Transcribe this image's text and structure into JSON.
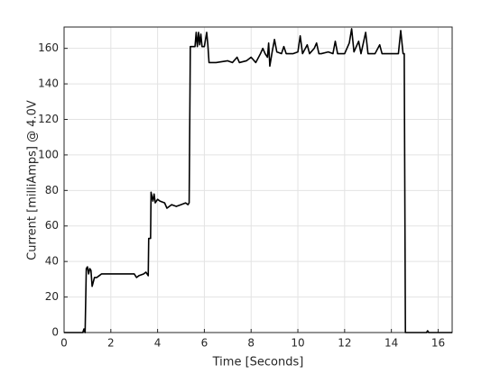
{
  "chart_data": {
    "type": "line",
    "xlabel": "Time [Seconds]",
    "ylabel": "Current [milliAmps] @ 4.0V",
    "x": [
      0,
      0.8,
      0.85,
      0.9,
      0.95,
      1.0,
      1.05,
      1.1,
      1.15,
      1.2,
      1.3,
      1.4,
      1.5,
      1.6,
      2.0,
      2.5,
      3.0,
      3.1,
      3.2,
      3.4,
      3.5,
      3.6,
      3.62,
      3.7,
      3.72,
      3.8,
      3.85,
      3.9,
      4.0,
      4.1,
      4.3,
      4.4,
      4.6,
      4.8,
      5.0,
      5.2,
      5.3,
      5.35,
      5.4,
      5.5,
      5.6,
      5.65,
      5.7,
      5.75,
      5.8,
      5.85,
      5.9,
      6.0,
      6.1,
      6.15,
      6.2,
      6.5,
      7.0,
      7.2,
      7.4,
      7.5,
      7.8,
      8.0,
      8.2,
      8.4,
      8.5,
      8.6,
      8.7,
      8.75,
      8.8,
      8.9,
      9.0,
      9.1,
      9.3,
      9.4,
      9.5,
      9.8,
      10.0,
      10.1,
      10.2,
      10.4,
      10.5,
      10.7,
      10.8,
      10.9,
      11.0,
      11.3,
      11.5,
      11.6,
      11.7,
      12.0,
      12.2,
      12.3,
      12.4,
      12.6,
      12.7,
      12.9,
      13.0,
      13.3,
      13.5,
      13.6,
      14.0,
      14.3,
      14.4,
      14.5,
      14.55,
      14.6,
      15.5,
      15.55,
      15.6,
      16.6
    ],
    "values": [
      0,
      0,
      2,
      0,
      36,
      37,
      33,
      36,
      35,
      26,
      31,
      31,
      32,
      33,
      33,
      33,
      33,
      31,
      32,
      33,
      34,
      32,
      53,
      53,
      79,
      74,
      78,
      73,
      75,
      74,
      73,
      70,
      72,
      71,
      72,
      73,
      72,
      73,
      161,
      161,
      161,
      169,
      161,
      169,
      162,
      168,
      161,
      161,
      169,
      162,
      152,
      152,
      153,
      152,
      155,
      152,
      153,
      155,
      152,
      157,
      160,
      157,
      155,
      163,
      150,
      158,
      165,
      158,
      157,
      161,
      157,
      157,
      158,
      167,
      157,
      162,
      157,
      160,
      163,
      157,
      157,
      158,
      157,
      164,
      157,
      157,
      163,
      171,
      158,
      164,
      157,
      169,
      157,
      157,
      162,
      157,
      157,
      157,
      170,
      157,
      157,
      0,
      0,
      1,
      0,
      0
    ],
    "color": "#000000",
    "xlim": [
      0,
      16.6
    ],
    "xticks": [
      0,
      2,
      4,
      6,
      8,
      10,
      12,
      14,
      16
    ],
    "ylim": [
      0,
      172
    ],
    "yticks": [
      0,
      20,
      40,
      60,
      80,
      100,
      120,
      140,
      160
    ],
    "grid": true
  }
}
